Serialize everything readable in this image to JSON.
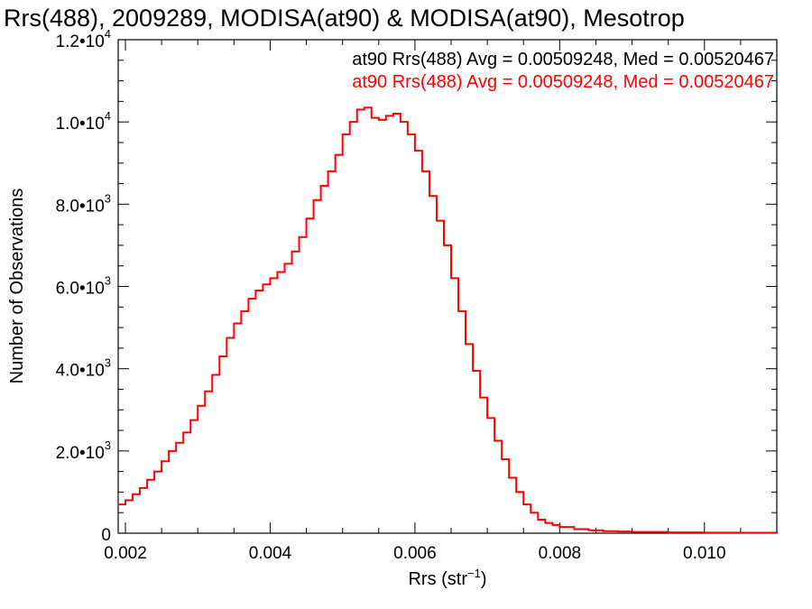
{
  "chart_data": {
    "type": "histogram",
    "title": "Rrs(488), 2009289, MODISA(at90) & MODISA(at90), Mesotrop",
    "xlabel": {
      "base": "Rrs (str",
      "sup": "−1",
      "tail": ")"
    },
    "ylabel": "Number of Observations",
    "xlim": [
      0.0019,
      0.011
    ],
    "ylim": [
      0,
      12000
    ],
    "x_ticks": [
      {
        "value": 0.002,
        "label": "0.002"
      },
      {
        "value": 0.004,
        "label": "0.004"
      },
      {
        "value": 0.006,
        "label": "0.006"
      },
      {
        "value": 0.008,
        "label": "0.008"
      },
      {
        "value": 0.01,
        "label": "0.010"
      }
    ],
    "y_ticks": [
      {
        "value": 0,
        "mant": "0",
        "exp": ""
      },
      {
        "value": 2000,
        "mant": "2.0•10",
        "exp": "3"
      },
      {
        "value": 4000,
        "mant": "4.0•10",
        "exp": "3"
      },
      {
        "value": 6000,
        "mant": "6.0•10",
        "exp": "3"
      },
      {
        "value": 8000,
        "mant": "8.0•10",
        "exp": "3"
      },
      {
        "value": 10000,
        "mant": "1.0•10",
        "exp": "4"
      },
      {
        "value": 12000,
        "mant": "1.2•10",
        "exp": "4"
      }
    ],
    "annotations": [
      {
        "text": "at90 Rrs(488) Avg = 0.00509248, Med = 0.00520467",
        "color": "#000000"
      },
      {
        "text": "at90 Rrs(488) Avg = 0.00509248, Med = 0.00520467",
        "color": "#ff0000"
      }
    ],
    "series": [
      {
        "color": "#ff0000",
        "x": [
          0.0019,
          0.002,
          0.0021,
          0.0022,
          0.0023,
          0.0024,
          0.0025,
          0.0026,
          0.0027,
          0.0028,
          0.0029,
          0.003,
          0.0031,
          0.0032,
          0.0033,
          0.0034,
          0.0035,
          0.0036,
          0.0037,
          0.0038,
          0.0039,
          0.004,
          0.0041,
          0.0042,
          0.0043,
          0.0044,
          0.0045,
          0.0046,
          0.0047,
          0.0048,
          0.0049,
          0.005,
          0.0051,
          0.0052,
          0.0053,
          0.0054,
          0.0055,
          0.0056,
          0.0057,
          0.0058,
          0.0059,
          0.006,
          0.0061,
          0.0062,
          0.0063,
          0.0064,
          0.0065,
          0.0066,
          0.0067,
          0.0068,
          0.0069,
          0.007,
          0.0071,
          0.0072,
          0.0073,
          0.0074,
          0.0075,
          0.0076,
          0.0077,
          0.0078,
          0.0079,
          0.008,
          0.0082,
          0.0084,
          0.0086,
          0.0088,
          0.009,
          0.0095,
          0.01,
          0.0105,
          0.011
        ],
        "y": [
          700,
          800,
          950,
          1100,
          1300,
          1500,
          1750,
          2000,
          2200,
          2450,
          2750,
          3100,
          3450,
          3850,
          4300,
          4750,
          5100,
          5400,
          5700,
          5900,
          6050,
          6200,
          6350,
          6550,
          6850,
          7200,
          7650,
          8100,
          8450,
          8800,
          9200,
          9700,
          10000,
          10300,
          10350,
          10100,
          10050,
          10150,
          10200,
          10000,
          9700,
          9300,
          8800,
          8200,
          7600,
          7000,
          6200,
          5400,
          4600,
          3950,
          3300,
          2800,
          2250,
          1800,
          1350,
          1000,
          700,
          500,
          330,
          250,
          200,
          150,
          100,
          70,
          50,
          40,
          30,
          20,
          15,
          10,
          5
        ]
      }
    ]
  }
}
